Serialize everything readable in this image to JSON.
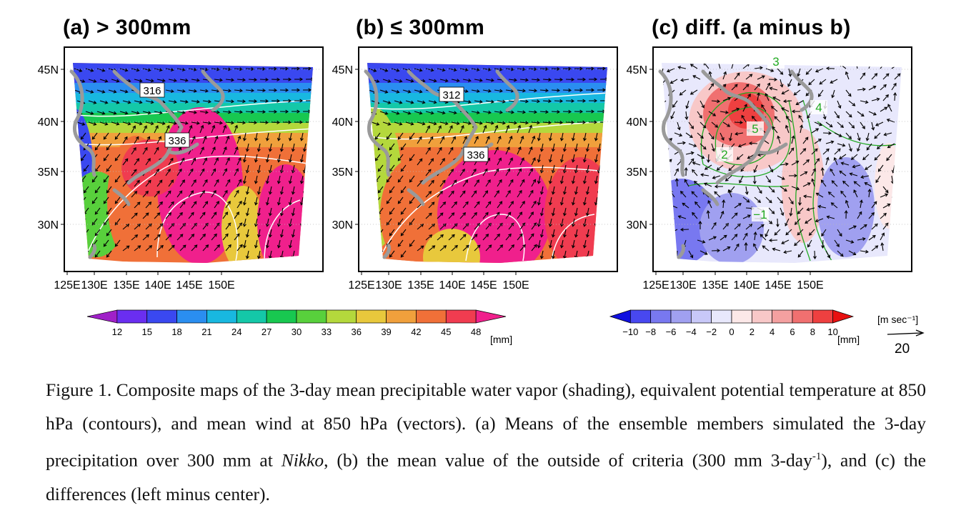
{
  "panels": [
    {
      "title": "(a) > 300mm",
      "labels": [
        "316",
        "336"
      ]
    },
    {
      "title": "(b) ≤ 300mm",
      "labels": [
        "312",
        "336"
      ]
    },
    {
      "title": "(c) diff. (a minus b)",
      "labels": [
        "3",
        "4",
        "5",
        "2",
        "−1"
      ]
    }
  ],
  "axes": {
    "lat_ticks": [
      "45N",
      "40N",
      "35N",
      "30N"
    ],
    "lon_ticks": [
      "125E",
      "130E",
      "135E",
      "140E",
      "145E",
      "150E"
    ]
  },
  "colorbar_pw": {
    "ticks": [
      "12",
      "15",
      "18",
      "21",
      "24",
      "27",
      "30",
      "33",
      "36",
      "39",
      "42",
      "45",
      "48"
    ],
    "unit": "[mm]",
    "colors": [
      "#a020c8",
      "#6a2ef0",
      "#3a48f0",
      "#2a8ef0",
      "#18b8e0",
      "#14c8a8",
      "#18c850",
      "#58d03c",
      "#b4d83c",
      "#e8c83c",
      "#f0a03c",
      "#f07038",
      "#f03c50",
      "#f0208c"
    ]
  },
  "colorbar_diff": {
    "ticks": [
      "−10",
      "−8",
      "−6",
      "−4",
      "−2",
      "0",
      "2",
      "4",
      "6",
      "8",
      "10"
    ],
    "unit": "[mm]",
    "colors": [
      "#1010e0",
      "#4848f0",
      "#7878f0",
      "#a0a0f0",
      "#c8c8f8",
      "#e8e8fc",
      "#fce8e8",
      "#f8c8c8",
      "#f4a0a0",
      "#f07070",
      "#ee4040",
      "#e81010"
    ]
  },
  "wind_key": {
    "unit_label": "[m sec⁻¹]",
    "value": "20"
  },
  "caption": {
    "part1": "Figure 1. Composite maps of the 3-day mean precipitable water vapor (shading), equivalent potential temperature at 850 hPa (contours), and mean wind at 850 hPa (vectors). (a) Means of the ensemble members simulated the 3-day precipitation over 300 mm at ",
    "italic": "Nikko",
    "part2": ", (b) the mean value of the outside of criteria (300 mm 3-day",
    "superscript": "-1",
    "part3": "), and (c) the differences (left minus center)."
  }
}
